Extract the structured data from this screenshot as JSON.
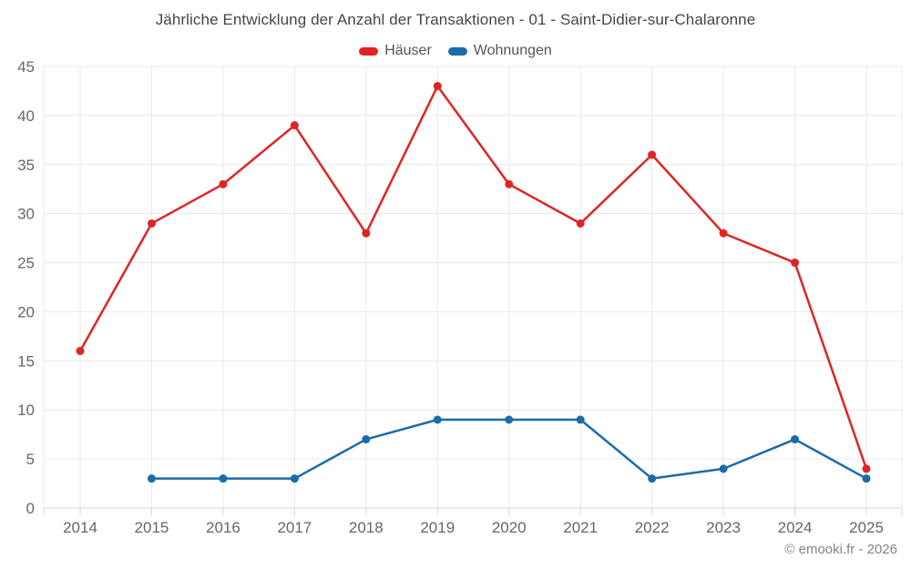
{
  "title": "Jährliche Entwicklung der Anzahl der Transaktionen - 01 - Saint-Didier-sur-Chalaronne",
  "footer": "© emooki.fr - 2026",
  "colors": {
    "hauser_red": "#e02424",
    "wohnungen_blue": "#1b6ca8",
    "grid": "#e9e9e9",
    "axis_line": "#d4d4d4",
    "tick_label": "#666666",
    "title_text": "#454545",
    "legend_text": "#555555",
    "footer_text": "#848484"
  },
  "chart_data": {
    "type": "line",
    "title": "Jährliche Entwicklung der Anzahl der Transaktionen - 01 - Saint-Didier-sur-Chalaronne",
    "categories": [
      "2014",
      "2015",
      "2016",
      "2017",
      "2018",
      "2019",
      "2020",
      "2021",
      "2022",
      "2023",
      "2024",
      "2025"
    ],
    "series": [
      {
        "name": "Häuser",
        "color": "#e02424",
        "values": [
          16,
          29,
          33,
          39,
          28,
          43,
          33,
          29,
          36,
          28,
          25,
          4
        ]
      },
      {
        "name": "Wohnungen",
        "color": "#1b6ca8",
        "values": [
          null,
          3,
          3,
          3,
          7,
          9,
          9,
          9,
          3,
          4,
          7,
          3
        ]
      }
    ],
    "xlabel": "",
    "ylabel": "",
    "ylim": [
      0,
      45
    ],
    "ytick_step": 5,
    "yticks": [
      0,
      5,
      10,
      15,
      20,
      25,
      30,
      35,
      40,
      45
    ],
    "grid": true,
    "legend_position": "top",
    "marker": "circle"
  }
}
